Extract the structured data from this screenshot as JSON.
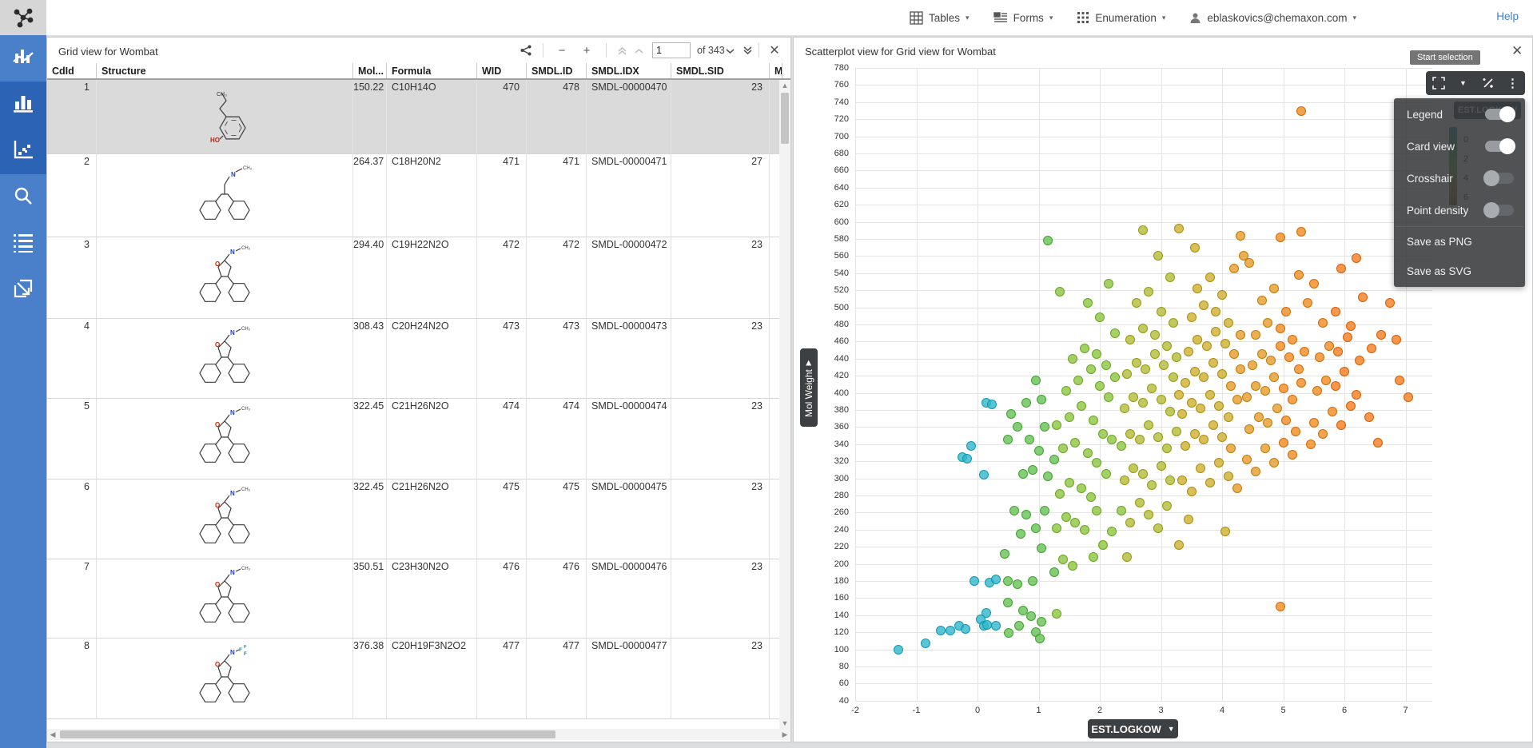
{
  "topbar": {
    "tables": "Tables",
    "forms": "Forms",
    "enumeration": "Enumeration",
    "user_email": "eblaskovics@chemaxon.com",
    "help": "Help"
  },
  "sidebar": {
    "items": [
      {
        "id": "combo-chart",
        "active": false
      },
      {
        "id": "bar-chart",
        "active": true
      },
      {
        "id": "scatter-chart",
        "active": true
      },
      {
        "id": "search",
        "active": false
      },
      {
        "id": "list",
        "active": false
      },
      {
        "id": "export",
        "active": false
      }
    ]
  },
  "grid": {
    "title": "Grid view for Wombat",
    "pagination": {
      "page": "1",
      "of": "of 343"
    },
    "columns": [
      "CdId",
      "Structure",
      "Mol...",
      "Formula",
      "WID",
      "SMDL.ID",
      "SMDL.IDX",
      "SMDL.SID",
      "M"
    ],
    "rows": [
      {
        "cdid": "1",
        "mol": "150.22",
        "formula": "C10H14O",
        "wid": "470",
        "smdl_id": "478",
        "smdl_idx": "SMDL-00000470",
        "smdl_sid": "23",
        "kind": "phenol",
        "selected": true
      },
      {
        "cdid": "2",
        "mol": "264.37",
        "formula": "C18H20N2",
        "wid": "471",
        "smdl_id": "471",
        "smdl_idx": "SMDL-00000471",
        "smdl_sid": "27",
        "kind": "tricyclicN",
        "selected": false
      },
      {
        "cdid": "3",
        "mol": "294.40",
        "formula": "C19H22N2O",
        "wid": "472",
        "smdl_id": "472",
        "smdl_idx": "SMDL-00000472",
        "smdl_sid": "23",
        "kind": "tricyclicO",
        "selected": false
      },
      {
        "cdid": "4",
        "mol": "308.43",
        "formula": "C20H24N2O",
        "wid": "473",
        "smdl_id": "473",
        "smdl_idx": "SMDL-00000473",
        "smdl_sid": "23",
        "kind": "tricyclicO",
        "selected": false
      },
      {
        "cdid": "5",
        "mol": "322.45",
        "formula": "C21H26N2O",
        "wid": "474",
        "smdl_id": "474",
        "smdl_idx": "SMDL-00000474",
        "smdl_sid": "23",
        "kind": "tricyclicO",
        "selected": false
      },
      {
        "cdid": "6",
        "mol": "322.45",
        "formula": "C21H26N2O",
        "wid": "475",
        "smdl_id": "475",
        "smdl_idx": "SMDL-00000475",
        "smdl_sid": "23",
        "kind": "tricyclicO",
        "selected": false
      },
      {
        "cdid": "7",
        "mol": "350.51",
        "formula": "C23H30N2O",
        "wid": "476",
        "smdl_id": "476",
        "smdl_idx": "SMDL-00000476",
        "smdl_sid": "23",
        "kind": "tricyclicO",
        "selected": false
      },
      {
        "cdid": "8",
        "mol": "376.38",
        "formula": "C20H19F3N2O2",
        "wid": "477",
        "smdl_id": "477",
        "smdl_idx": "SMDL-00000477",
        "smdl_sid": "23",
        "kind": "tricyclicF",
        "selected": false
      }
    ]
  },
  "scatter": {
    "title": "Scatterplot view for Grid view for Wombat",
    "tooltip": "Start selection",
    "menu": {
      "toggles": [
        {
          "label": "Legend",
          "on": true
        },
        {
          "label": "Card view",
          "on": true
        },
        {
          "label": "Crosshair",
          "on": false
        },
        {
          "label": "Point density",
          "on": false
        }
      ],
      "actions": [
        "Save as PNG",
        "Save as SVG"
      ]
    },
    "legend": {
      "label": "EST.LOGKOW",
      "ticks": [
        "0",
        "2",
        "4",
        "6"
      ]
    },
    "x_axis_button": "EST.LOGKOW",
    "y_axis_tab": "Mol Weight"
  },
  "chart_data": {
    "type": "scatter",
    "xlabel": "EST.LOGKOW",
    "ylabel": "Mol Weight",
    "xlim": [
      -2,
      7
    ],
    "x_tick_step": 1,
    "ylim": [
      40,
      780
    ],
    "y_tick_step": 20,
    "grid": true,
    "legend_position": "top-right",
    "color_by": "x",
    "colormap": [
      {
        "max": 0.35,
        "fill": "#2fb7cb",
        "stroke": "#0f98b2"
      },
      {
        "max": 1.25,
        "fill": "#66c055",
        "stroke": "#3da32c"
      },
      {
        "max": 2.35,
        "fill": "#8dc63f",
        "stroke": "#66a61e"
      },
      {
        "max": 3.25,
        "fill": "#b4bc36",
        "stroke": "#8f9c10"
      },
      {
        "max": 4.1,
        "fill": "#d0af2e",
        "stroke": "#ab8d0a"
      },
      {
        "max": 4.9,
        "fill": "#e69c28",
        "stroke": "#c07b07"
      },
      {
        "max": 5.8,
        "fill": "#f28b20",
        "stroke": "#d16a02"
      },
      {
        "max": 99,
        "fill": "#f47d1e",
        "stroke": "#d85c00"
      }
    ],
    "points": [
      [
        -1.3,
        100
      ],
      [
        -0.85,
        107
      ],
      [
        -0.6,
        122
      ],
      [
        -0.45,
        122
      ],
      [
        -0.3,
        128
      ],
      [
        -0.2,
        124
      ],
      [
        0.05,
        135
      ],
      [
        0.1,
        128
      ],
      [
        0.15,
        143
      ],
      [
        0.3,
        128
      ],
      [
        0.16,
        129
      ],
      [
        -0.05,
        180
      ],
      [
        0.2,
        178
      ],
      [
        0.3,
        182
      ],
      [
        -0.25,
        325
      ],
      [
        0.15,
        388
      ],
      [
        -0.1,
        338
      ],
      [
        0.24,
        387
      ],
      [
        -0.17,
        323
      ],
      [
        0.1,
        304
      ],
      [
        0.5,
        180
      ],
      [
        0.65,
        176
      ],
      [
        0.5,
        155
      ],
      [
        0.75,
        145
      ],
      [
        0.9,
        180
      ],
      [
        0.45,
        212
      ],
      [
        0.7,
        235
      ],
      [
        0.8,
        258
      ],
      [
        0.95,
        242
      ],
      [
        0.6,
        262
      ],
      [
        0.75,
        305
      ],
      [
        0.9,
        310
      ],
      [
        0.5,
        345
      ],
      [
        0.65,
        360
      ],
      [
        0.85,
        345
      ],
      [
        1.0,
        332
      ],
      [
        0.55,
        375
      ],
      [
        0.8,
        388
      ],
      [
        1.05,
        392
      ],
      [
        1.1,
        360
      ],
      [
        0.95,
        415
      ],
      [
        1.15,
        302
      ],
      [
        1.1,
        262
      ],
      [
        1.05,
        218
      ],
      [
        0.68,
        128
      ],
      [
        0.88,
        139
      ],
      [
        0.51,
        119
      ],
      [
        1.05,
        132
      ],
      [
        0.95,
        120
      ],
      [
        1.02,
        113
      ],
      [
        1.15,
        578
      ],
      [
        1.25,
        190
      ],
      [
        1.3,
        142
      ],
      [
        1.4,
        205
      ],
      [
        1.55,
        198
      ],
      [
        1.3,
        242
      ],
      [
        1.45,
        255
      ],
      [
        1.6,
        248
      ],
      [
        1.75,
        240
      ],
      [
        1.35,
        282
      ],
      [
        1.5,
        295
      ],
      [
        1.7,
        288
      ],
      [
        1.85,
        278
      ],
      [
        1.95,
        262
      ],
      [
        1.25,
        322
      ],
      [
        1.4,
        335
      ],
      [
        1.6,
        342
      ],
      [
        1.8,
        330
      ],
      [
        1.95,
        318
      ],
      [
        2.1,
        305
      ],
      [
        1.3,
        362
      ],
      [
        1.5,
        372
      ],
      [
        1.7,
        385
      ],
      [
        1.9,
        368
      ],
      [
        2.05,
        352
      ],
      [
        2.2,
        345
      ],
      [
        1.45,
        402
      ],
      [
        1.65,
        415
      ],
      [
        1.85,
        428
      ],
      [
        2.0,
        408
      ],
      [
        2.15,
        395
      ],
      [
        1.55,
        440
      ],
      [
        1.75,
        452
      ],
      [
        1.95,
        445
      ],
      [
        2.1,
        432
      ],
      [
        2.25,
        418
      ],
      [
        1.35,
        518
      ],
      [
        2.2,
        238
      ],
      [
        2.05,
        222
      ],
      [
        1.9,
        208
      ],
      [
        2.25,
        470
      ],
      [
        2.0,
        488
      ],
      [
        1.8,
        505
      ],
      [
        2.15,
        528
      ],
      [
        2.35,
        262
      ],
      [
        2.5,
        248
      ],
      [
        2.65,
        272
      ],
      [
        2.8,
        258
      ],
      [
        2.95,
        242
      ],
      [
        3.1,
        268
      ],
      [
        2.4,
        298
      ],
      [
        2.55,
        312
      ],
      [
        2.7,
        305
      ],
      [
        2.85,
        292
      ],
      [
        3.0,
        315
      ],
      [
        3.15,
        298
      ],
      [
        2.35,
        338
      ],
      [
        2.5,
        352
      ],
      [
        2.65,
        345
      ],
      [
        2.8,
        362
      ],
      [
        2.95,
        348
      ],
      [
        3.1,
        335
      ],
      [
        3.25,
        355
      ],
      [
        2.4,
        382
      ],
      [
        2.55,
        395
      ],
      [
        2.7,
        388
      ],
      [
        2.85,
        405
      ],
      [
        3.0,
        392
      ],
      [
        3.15,
        378
      ],
      [
        3.3,
        398
      ],
      [
        2.45,
        422
      ],
      [
        2.6,
        435
      ],
      [
        2.75,
        428
      ],
      [
        2.9,
        445
      ],
      [
        3.05,
        432
      ],
      [
        3.2,
        418
      ],
      [
        2.5,
        462
      ],
      [
        2.7,
        475
      ],
      [
        2.9,
        468
      ],
      [
        3.1,
        455
      ],
      [
        3.25,
        442
      ],
      [
        2.6,
        505
      ],
      [
        2.8,
        518
      ],
      [
        3.0,
        495
      ],
      [
        3.2,
        482
      ],
      [
        2.7,
        590
      ],
      [
        2.95,
        560
      ],
      [
        3.15,
        535
      ],
      [
        2.45,
        208
      ],
      [
        3.3,
        222
      ],
      [
        3.3,
        592
      ],
      [
        3.35,
        298
      ],
      [
        3.5,
        285
      ],
      [
        3.65,
        312
      ],
      [
        3.8,
        295
      ],
      [
        3.95,
        318
      ],
      [
        4.1,
        302
      ],
      [
        4.25,
        288
      ],
      [
        3.4,
        338
      ],
      [
        3.55,
        352
      ],
      [
        3.7,
        345
      ],
      [
        3.85,
        362
      ],
      [
        4.0,
        348
      ],
      [
        4.15,
        335
      ],
      [
        3.35,
        375
      ],
      [
        3.5,
        388
      ],
      [
        3.65,
        382
      ],
      [
        3.8,
        398
      ],
      [
        3.95,
        385
      ],
      [
        4.1,
        372
      ],
      [
        4.25,
        392
      ],
      [
        3.4,
        412
      ],
      [
        3.55,
        425
      ],
      [
        3.7,
        418
      ],
      [
        3.85,
        435
      ],
      [
        4.0,
        422
      ],
      [
        4.15,
        408
      ],
      [
        4.3,
        428
      ],
      [
        3.45,
        448
      ],
      [
        3.6,
        462
      ],
      [
        3.75,
        455
      ],
      [
        3.9,
        472
      ],
      [
        4.05,
        458
      ],
      [
        4.2,
        445
      ],
      [
        3.5,
        488
      ],
      [
        3.7,
        502
      ],
      [
        3.9,
        495
      ],
      [
        4.1,
        482
      ],
      [
        4.3,
        468
      ],
      [
        3.6,
        522
      ],
      [
        3.8,
        535
      ],
      [
        4.0,
        515
      ],
      [
        4.2,
        545
      ],
      [
        3.55,
        570
      ],
      [
        4.35,
        560
      ],
      [
        3.45,
        252
      ],
      [
        4.05,
        238
      ],
      [
        4.3,
        584
      ],
      [
        4.4,
        322
      ],
      [
        4.55,
        308
      ],
      [
        4.7,
        335
      ],
      [
        4.85,
        318
      ],
      [
        5.0,
        342
      ],
      [
        5.15,
        328
      ],
      [
        4.45,
        358
      ],
      [
        4.6,
        372
      ],
      [
        4.75,
        365
      ],
      [
        4.9,
        382
      ],
      [
        5.05,
        368
      ],
      [
        5.2,
        355
      ],
      [
        4.4,
        395
      ],
      [
        4.55,
        408
      ],
      [
        4.7,
        402
      ],
      [
        4.85,
        418
      ],
      [
        5.0,
        405
      ],
      [
        5.15,
        392
      ],
      [
        5.3,
        412
      ],
      [
        4.5,
        432
      ],
      [
        4.65,
        445
      ],
      [
        4.8,
        438
      ],
      [
        4.95,
        455
      ],
      [
        5.1,
        442
      ],
      [
        5.25,
        428
      ],
      [
        4.55,
        468
      ],
      [
        4.75,
        482
      ],
      [
        4.95,
        475
      ],
      [
        5.15,
        462
      ],
      [
        5.35,
        448
      ],
      [
        4.65,
        508
      ],
      [
        4.85,
        522
      ],
      [
        5.05,
        495
      ],
      [
        5.25,
        538
      ],
      [
        4.45,
        552
      ],
      [
        5.3,
        730
      ],
      [
        4.95,
        150
      ],
      [
        5.4,
        505
      ],
      [
        5.45,
        340
      ],
      [
        4.95,
        582
      ],
      [
        5.3,
        588
      ],
      [
        5.5,
        365
      ],
      [
        5.65,
        352
      ],
      [
        5.8,
        378
      ],
      [
        5.95,
        362
      ],
      [
        6.1,
        385
      ],
      [
        5.55,
        402
      ],
      [
        5.7,
        415
      ],
      [
        5.85,
        408
      ],
      [
        6.0,
        425
      ],
      [
        6.2,
        398
      ],
      [
        5.6,
        442
      ],
      [
        5.75,
        455
      ],
      [
        5.9,
        448
      ],
      [
        6.05,
        465
      ],
      [
        6.25,
        438
      ],
      [
        5.65,
        482
      ],
      [
        5.85,
        495
      ],
      [
        6.1,
        478
      ],
      [
        6.3,
        512
      ],
      [
        5.5,
        528
      ],
      [
        6.45,
        452
      ],
      [
        6.6,
        468
      ],
      [
        6.85,
        462
      ],
      [
        7.05,
        395
      ],
      [
        6.9,
        415
      ],
      [
        6.4,
        372
      ],
      [
        6.55,
        342
      ],
      [
        6.75,
        505
      ],
      [
        5.95,
        545
      ],
      [
        6.2,
        558
      ]
    ]
  }
}
